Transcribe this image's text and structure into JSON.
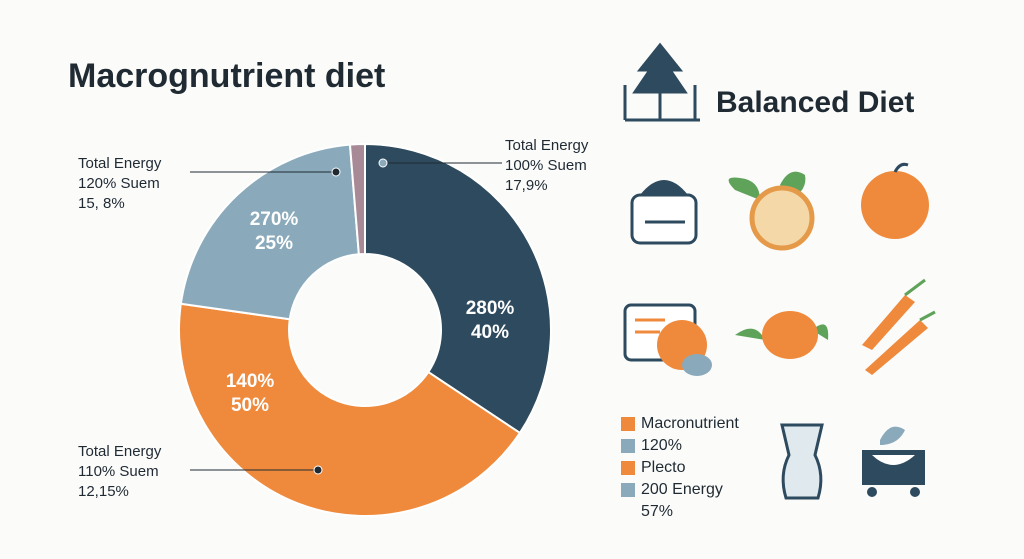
{
  "chart_data": {
    "type": "pie",
    "title": "Macrognutrient diet",
    "values": [
      40,
      50,
      25,
      1.5
    ],
    "colors": [
      "#2e4a5e",
      "#ef8a3c",
      "#8aaabb",
      "#a88a96"
    ],
    "top_labels": [
      "280%",
      "140%",
      "270%",
      null
    ],
    "value_labels": [
      "40%",
      "50%",
      "25%",
      null
    ],
    "annotations": [
      {
        "lines": [
          "Total Energy",
          "100% Suem",
          "17,9%"
        ]
      },
      {
        "lines": [
          "Total Energy",
          "120% Suem",
          "15, 8%"
        ]
      },
      {
        "lines": [
          "Total Energy",
          "110% Suem",
          "12,15%"
        ]
      }
    ],
    "panel_title": "Balanced Diet",
    "legend": [
      {
        "name": "Macronutrient",
        "color": "#ef8a3c"
      },
      {
        "name": "120%",
        "color": "#8aaabb"
      },
      {
        "name": "Plecto",
        "color": "#ef8a3c"
      },
      {
        "name": "200 Energy",
        "color": "#8aaabb"
      },
      {
        "name": "57%",
        "color": null
      }
    ]
  }
}
